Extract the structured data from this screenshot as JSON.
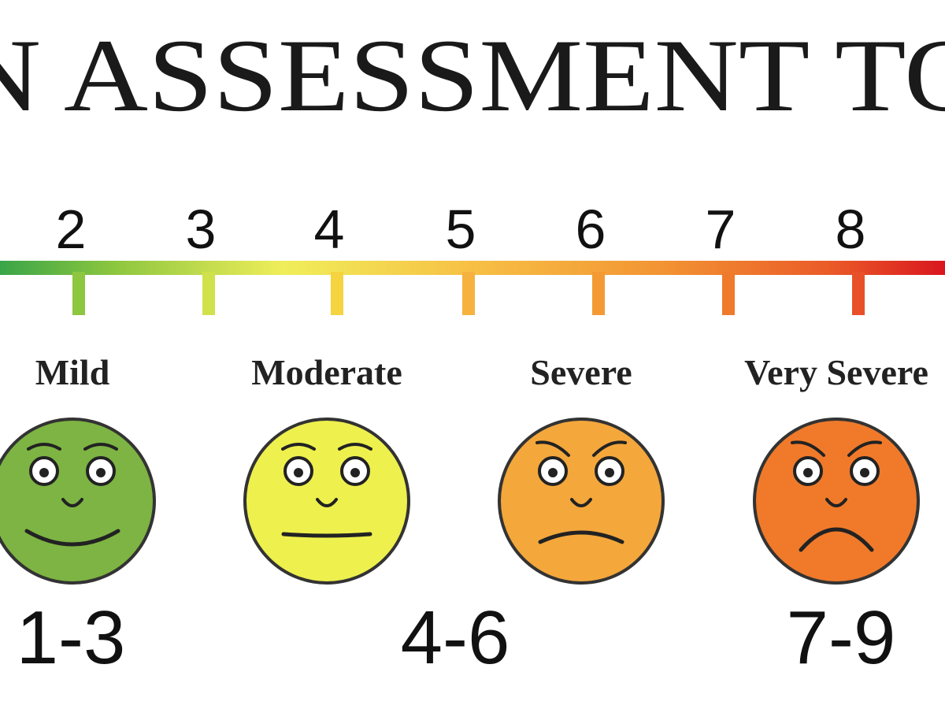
{
  "title": "N ASSESSMENT TO",
  "scale": {
    "numbers": [
      "2",
      "3",
      "4",
      "5",
      "6",
      "7",
      "8"
    ]
  },
  "levels": [
    {
      "label": "Mild"
    },
    {
      "label": "Moderate"
    },
    {
      "label": "Severe"
    },
    {
      "label": "Very Severe"
    }
  ],
  "ranges": [
    "1-3",
    "4-6",
    "7-9"
  ]
}
